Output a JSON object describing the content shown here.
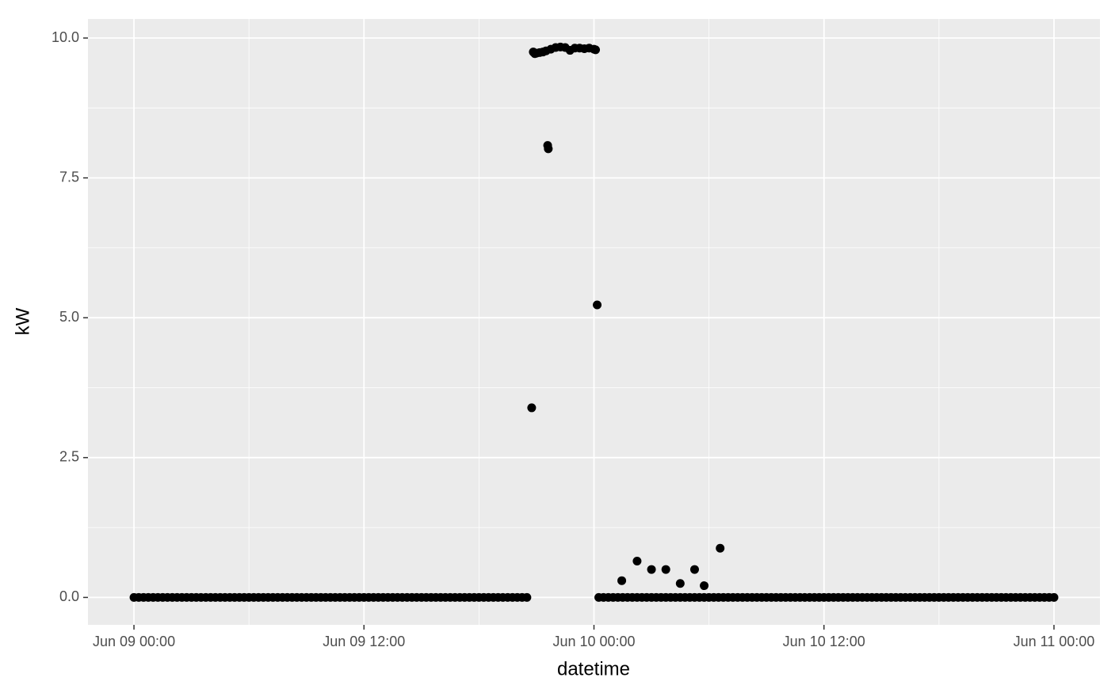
{
  "chart_data": {
    "type": "scatter",
    "x_label": "datetime",
    "y_label": "kW",
    "color": "#000000",
    "grid": true,
    "xlim": [
      "Jun 08 21:36",
      "Jun 11 02:24"
    ],
    "xticks": [
      "Jun 09 00:00",
      "Jun 09 12:00",
      "Jun 10 00:00",
      "Jun 10 12:00",
      "Jun 11 00:00"
    ],
    "ylim": [
      -0.49,
      10.34
    ],
    "yticks": [
      {
        "value": 0,
        "label": "0.0"
      },
      {
        "value": 2.5,
        "label": "2.5"
      },
      {
        "value": 5,
        "label": "5.0"
      },
      {
        "value": 7.5,
        "label": "7.5"
      },
      {
        "value": 10,
        "label": "10.0"
      }
    ],
    "x": [
      "Jun 09 00:00",
      "Jun 09 00:15",
      "Jun 09 00:30",
      "Jun 09 00:45",
      "Jun 09 01:00",
      "Jun 09 01:15",
      "Jun 09 01:30",
      "Jun 09 01:45",
      "Jun 09 02:00",
      "Jun 09 02:15",
      "Jun 09 02:30",
      "Jun 09 02:45",
      "Jun 09 03:00",
      "Jun 09 03:15",
      "Jun 09 03:30",
      "Jun 09 03:45",
      "Jun 09 04:00",
      "Jun 09 04:15",
      "Jun 09 04:30",
      "Jun 09 04:45",
      "Jun 09 05:00",
      "Jun 09 05:15",
      "Jun 09 05:30",
      "Jun 09 05:45",
      "Jun 09 06:00",
      "Jun 09 06:15",
      "Jun 09 06:30",
      "Jun 09 06:45",
      "Jun 09 07:00",
      "Jun 09 07:15",
      "Jun 09 07:30",
      "Jun 09 07:45",
      "Jun 09 08:00",
      "Jun 09 08:15",
      "Jun 09 08:30",
      "Jun 09 08:45",
      "Jun 09 09:00",
      "Jun 09 09:15",
      "Jun 09 09:30",
      "Jun 09 09:45",
      "Jun 09 10:00",
      "Jun 09 10:15",
      "Jun 09 10:30",
      "Jun 09 10:45",
      "Jun 09 11:00",
      "Jun 09 11:15",
      "Jun 09 11:30",
      "Jun 09 11:45",
      "Jun 09 12:00",
      "Jun 09 12:15",
      "Jun 09 12:30",
      "Jun 09 12:45",
      "Jun 09 13:00",
      "Jun 09 13:15",
      "Jun 09 13:30",
      "Jun 09 13:45",
      "Jun 09 14:00",
      "Jun 09 14:15",
      "Jun 09 14:30",
      "Jun 09 14:45",
      "Jun 09 15:00",
      "Jun 09 15:15",
      "Jun 09 15:30",
      "Jun 09 15:45",
      "Jun 09 16:00",
      "Jun 09 16:15",
      "Jun 09 16:30",
      "Jun 09 16:45",
      "Jun 09 17:00",
      "Jun 09 17:15",
      "Jun 09 17:30",
      "Jun 09 17:45",
      "Jun 09 18:00",
      "Jun 09 18:15",
      "Jun 09 18:30",
      "Jun 09 18:45",
      "Jun 09 19:00",
      "Jun 09 19:15",
      "Jun 09 19:30",
      "Jun 09 19:45",
      "Jun 09 20:00",
      "Jun 09 20:15",
      "Jun 09 20:30",
      "Jun 09 20:45",
      "Jun 09 20:50",
      "Jun 09 20:55",
      "Jun 09 21:00",
      "Jun 09 21:10",
      "Jun 09 21:20",
      "Jun 09 21:30",
      "Jun 09 21:35",
      "Jun 09 21:37",
      "Jun 09 21:45",
      "Jun 09 22:00",
      "Jun 09 22:15",
      "Jun 09 22:30",
      "Jun 09 22:45",
      "Jun 09 23:00",
      "Jun 09 23:15",
      "Jun 09 23:30",
      "Jun 09 23:45",
      "Jun 10 00:00",
      "Jun 10 00:05",
      "Jun 10 00:10",
      "Jun 10 00:15",
      "Jun 10 00:30",
      "Jun 10 00:45",
      "Jun 10 01:00",
      "Jun 10 01:15",
      "Jun 10 01:30",
      "Jun 10 01:45",
      "Jun 10 02:00",
      "Jun 10 02:15",
      "Jun 10 02:30",
      "Jun 10 02:45",
      "Jun 10 03:00",
      "Jun 10 03:15",
      "Jun 10 03:30",
      "Jun 10 03:45",
      "Jun 10 04:00",
      "Jun 10 04:15",
      "Jun 10 04:30",
      "Jun 10 04:45",
      "Jun 10 05:00",
      "Jun 10 05:15",
      "Jun 10 05:30",
      "Jun 10 05:45",
      "Jun 10 06:00",
      "Jun 10 06:15",
      "Jun 10 06:30",
      "Jun 10 06:45",
      "Jun 10 07:00",
      "Jun 10 07:15",
      "Jun 10 07:30",
      "Jun 10 07:45",
      "Jun 10 08:00",
      "Jun 10 08:15",
      "Jun 10 08:30",
      "Jun 10 08:45",
      "Jun 10 09:00",
      "Jun 10 09:15",
      "Jun 10 09:30",
      "Jun 10 09:45",
      "Jun 10 10:00",
      "Jun 10 10:15",
      "Jun 10 10:30",
      "Jun 10 10:45",
      "Jun 10 11:00",
      "Jun 10 11:15",
      "Jun 10 11:30",
      "Jun 10 11:45",
      "Jun 10 12:00",
      "Jun 10 12:15",
      "Jun 10 12:30",
      "Jun 10 12:45",
      "Jun 10 13:00",
      "Jun 10 13:15",
      "Jun 10 13:30",
      "Jun 10 13:45",
      "Jun 10 14:00",
      "Jun 10 14:15",
      "Jun 10 14:30",
      "Jun 10 14:45",
      "Jun 10 15:00",
      "Jun 10 15:15",
      "Jun 10 15:30",
      "Jun 10 15:45",
      "Jun 10 16:00",
      "Jun 10 16:15",
      "Jun 10 16:30",
      "Jun 10 16:45",
      "Jun 10 17:00",
      "Jun 10 17:15",
      "Jun 10 17:30",
      "Jun 10 17:45",
      "Jun 10 18:00",
      "Jun 10 18:15",
      "Jun 10 18:30",
      "Jun 10 18:45",
      "Jun 10 19:00",
      "Jun 10 19:15",
      "Jun 10 19:30",
      "Jun 10 19:45",
      "Jun 10 20:00",
      "Jun 10 20:15",
      "Jun 10 20:30",
      "Jun 10 20:45",
      "Jun 10 21:00",
      "Jun 10 21:15",
      "Jun 10 21:30",
      "Jun 10 21:45",
      "Jun 10 22:00",
      "Jun 10 22:15",
      "Jun 10 22:30",
      "Jun 10 22:45",
      "Jun 10 23:00",
      "Jun 10 23:15",
      "Jun 10 23:30",
      "Jun 10 23:45",
      "Jun 11 00:00",
      "Jun 10 01:27",
      "Jun 10 02:15",
      "Jun 10 03:00",
      "Jun 10 03:45",
      "Jun 10 04:30",
      "Jun 10 05:15",
      "Jun 10 05:45",
      "Jun 10 06:35"
    ],
    "values": [
      0,
      0,
      0,
      0,
      0,
      0,
      0,
      0,
      0,
      0,
      0,
      0,
      0,
      0,
      0,
      0,
      0,
      0,
      0,
      0,
      0,
      0,
      0,
      0,
      0,
      0,
      0,
      0,
      0,
      0,
      0,
      0,
      0,
      0,
      0,
      0,
      0,
      0,
      0,
      0,
      0,
      0,
      0,
      0,
      0,
      0,
      0,
      0,
      0,
      0,
      0,
      0,
      0,
      0,
      0,
      0,
      0,
      0,
      0,
      0,
      0,
      0,
      0,
      0,
      0,
      0,
      0,
      0,
      0,
      0,
      0,
      0,
      0,
      0,
      0,
      0,
      0,
      0,
      0,
      0,
      0,
      0,
      0,
      3.39,
      9.75,
      9.72,
      9.73,
      9.74,
      9.75,
      9.77,
      8.08,
      8.02,
      9.8,
      9.83,
      9.84,
      9.83,
      9.78,
      9.82,
      9.82,
      9.81,
      9.82,
      9.8,
      9.79,
      5.23,
      0,
      0,
      0,
      0,
      0,
      0,
      0,
      0,
      0,
      0,
      0,
      0,
      0,
      0,
      0,
      0,
      0,
      0,
      0,
      0,
      0,
      0,
      0,
      0,
      0,
      0,
      0,
      0,
      0,
      0,
      0,
      0,
      0,
      0,
      0,
      0,
      0,
      0,
      0,
      0,
      0,
      0,
      0,
      0,
      0,
      0,
      0,
      0,
      0,
      0,
      0,
      0,
      0,
      0,
      0,
      0,
      0,
      0,
      0,
      0,
      0,
      0,
      0,
      0,
      0,
      0,
      0,
      0,
      0,
      0,
      0,
      0,
      0,
      0,
      0,
      0,
      0,
      0,
      0,
      0,
      0,
      0,
      0,
      0,
      0,
      0,
      0,
      0,
      0,
      0,
      0,
      0,
      0,
      0,
      0,
      0,
      0.3,
      0.65,
      0.5,
      0.5,
      0.25,
      0.5,
      0.21,
      0.88
    ]
  }
}
